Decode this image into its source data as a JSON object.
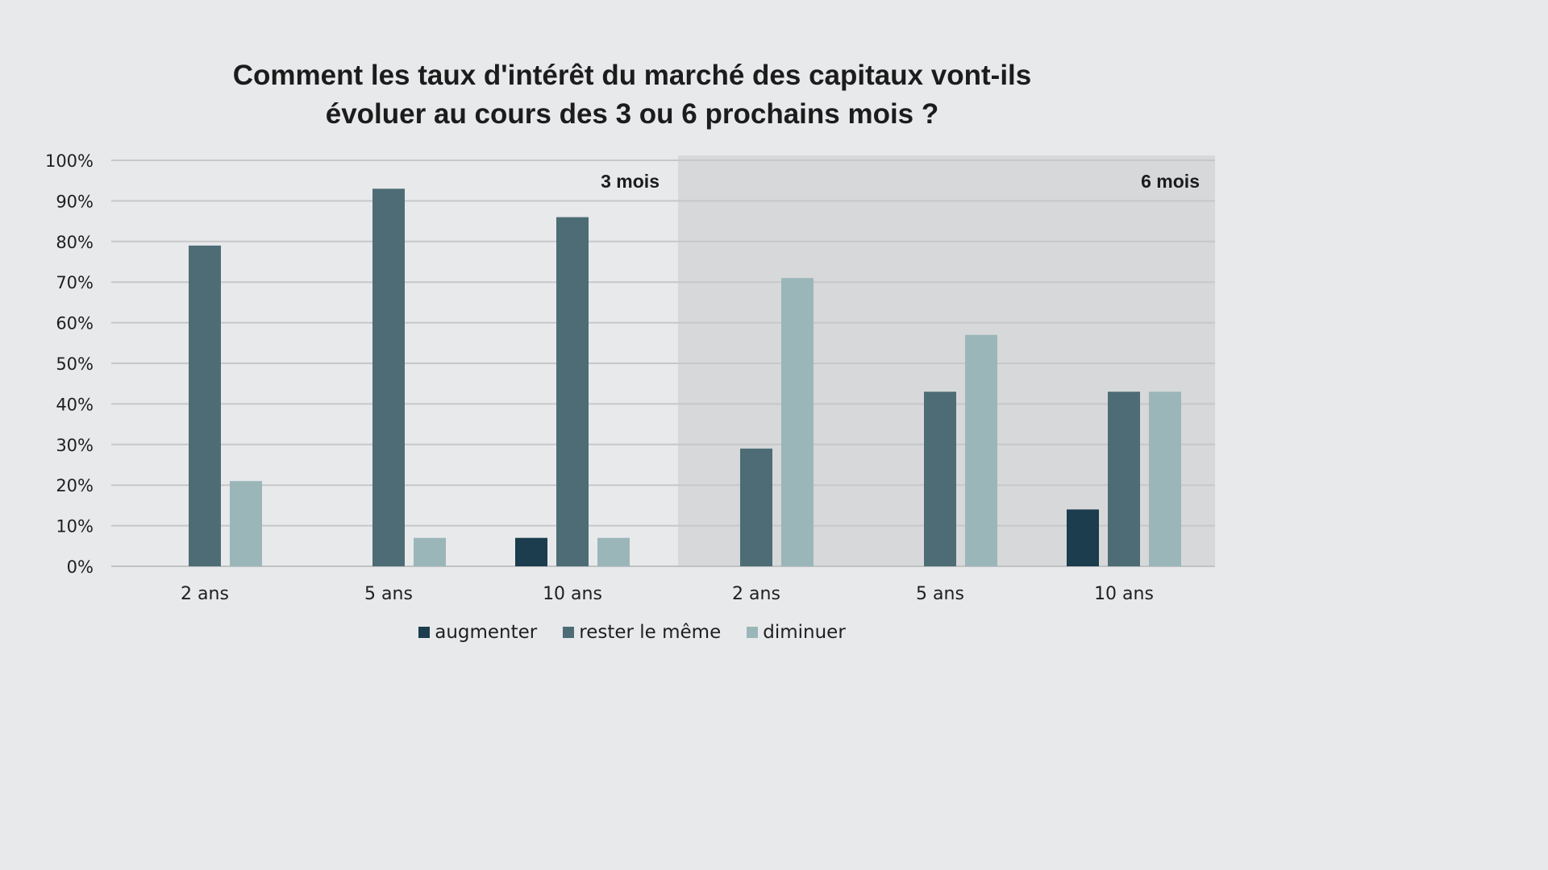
{
  "chart_data": {
    "type": "bar",
    "title_lines": [
      "Comment les taux d'intérêt du marché des capitaux vont-ils",
      "évoluer au cours des 3 ou 6 prochains mois ?"
    ],
    "panels": [
      {
        "label": "3 mois",
        "shaded": false
      },
      {
        "label": "6 mois",
        "shaded": true
      }
    ],
    "categories": [
      "2 ans",
      "5 ans",
      "10 ans",
      "2 ans",
      "5 ans",
      "10 ans"
    ],
    "series": [
      {
        "name": "augmenter",
        "color": "#1b3d4d",
        "values": [
          0,
          0,
          7,
          0,
          0,
          14
        ]
      },
      {
        "name": "rester le même",
        "color": "#4d6c76",
        "values": [
          79,
          93,
          86,
          29,
          43,
          43
        ]
      },
      {
        "name": "diminuer",
        "color": "#9bb6b9",
        "values": [
          21,
          7,
          7,
          71,
          57,
          43
        ]
      }
    ],
    "y_ticks": [
      "0%",
      "10%",
      "20%",
      "30%",
      "40%",
      "50%",
      "60%",
      "70%",
      "80%",
      "90%",
      "100%"
    ],
    "ylim": [
      0,
      100
    ],
    "grid": true,
    "legend_position": "bottom-center",
    "colors": {
      "background": "#e8e9eb",
      "shaded_panel": "#d7d8da",
      "grid": "#c5c7c9",
      "axis": "#bfc1c3"
    }
  }
}
